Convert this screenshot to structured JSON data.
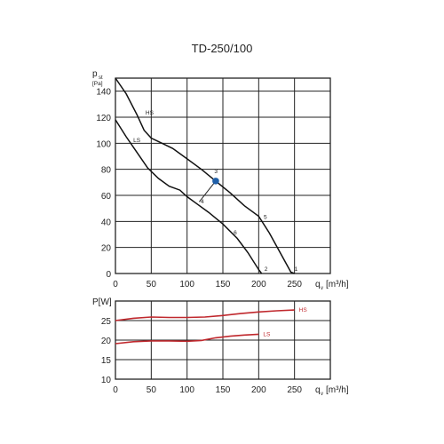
{
  "chart_data": [
    {
      "type": "line",
      "title": "TD-250/100",
      "ylabel_main": "p",
      "ylabel_sub": "st",
      "ylabel_unit": "[Pa]",
      "xlabel_main": "q",
      "xlabel_sub": "v",
      "xlabel_unit": "[m³/h]",
      "xlim": [
        0,
        300
      ],
      "ylim": [
        0,
        150
      ],
      "xticks": [
        0,
        50,
        100,
        150,
        200,
        250
      ],
      "yticks": [
        0,
        20,
        40,
        60,
        80,
        100,
        120,
        140
      ],
      "grid": true,
      "series": [
        {
          "name": "HS",
          "x": [
            0,
            15,
            30,
            40,
            50,
            65,
            80,
            100,
            120,
            140,
            160,
            180,
            200,
            215,
            230,
            245,
            250
          ],
          "y": [
            150,
            138,
            122,
            110,
            104,
            100,
            96,
            88,
            80,
            71,
            62,
            52,
            44,
            31,
            16,
            1,
            0
          ]
        },
        {
          "name": "LS",
          "x": [
            0,
            15,
            30,
            45,
            60,
            75,
            90,
            100,
            115,
            130,
            150,
            170,
            185,
            200,
            204
          ],
          "y": [
            118,
            105,
            93,
            81,
            73,
            67,
            64,
            59,
            53,
            47,
            38,
            27,
            16,
            3,
            0
          ]
        }
      ],
      "point_labels": [
        "1",
        "2",
        "3",
        "4",
        "5",
        "6"
      ],
      "operating_point": {
        "x": 140,
        "y": 71
      }
    },
    {
      "type": "line",
      "ylabel": "P[W]",
      "xlabel_main": "q",
      "xlabel_sub": "v",
      "xlabel_unit": "[m³/h]",
      "xlim": [
        0,
        300
      ],
      "ylim": [
        10,
        30
      ],
      "xticks": [
        0,
        50,
        100,
        150,
        200,
        250
      ],
      "yticks": [
        10,
        15,
        20,
        25
      ],
      "grid": true,
      "series": [
        {
          "name": "HS",
          "x": [
            0,
            25,
            50,
            75,
            100,
            125,
            150,
            175,
            200,
            225,
            250
          ],
          "y": [
            25,
            25.6,
            25.9,
            25.8,
            25.8,
            25.9,
            26.3,
            26.8,
            27.2,
            27.5,
            27.7
          ]
        },
        {
          "name": "LS",
          "x": [
            0,
            25,
            50,
            75,
            100,
            120,
            140,
            160,
            180,
            200
          ],
          "y": [
            19.1,
            19.6,
            19.8,
            19.8,
            19.7,
            19.9,
            20.6,
            21.0,
            21.3,
            21.5
          ]
        }
      ]
    }
  ]
}
